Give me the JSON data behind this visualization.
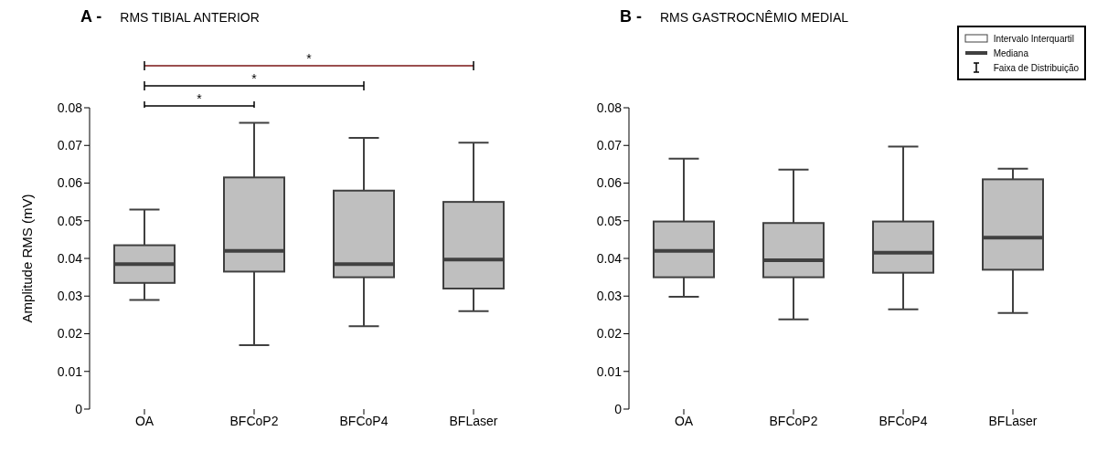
{
  "chart_data": [
    {
      "type": "box",
      "title": "A -",
      "subtitle": "RMS TIBIAL ANTERIOR",
      "ylabel": "Amplitude RMS (mV)",
      "categories": [
        "OA",
        "BFCoP2",
        "BFCoP4",
        "BFLaser"
      ],
      "ylim": [
        0,
        0.08
      ],
      "yticks": [
        0,
        0.01,
        0.02,
        0.03,
        0.04,
        0.05,
        0.06,
        0.07,
        0.08
      ],
      "annotations": [
        "*",
        "*",
        "*"
      ],
      "series": [
        {
          "color": "#bfbfbf",
          "boxes": [
            {
              "low": 0.029,
              "q1": 0.0335,
              "median": 0.0385,
              "q3": 0.0435,
              "high": 0.053
            },
            {
              "low": 0.017,
              "q1": 0.0365,
              "median": 0.042,
              "q3": 0.0615,
              "high": 0.076
            },
            {
              "low": 0.022,
              "q1": 0.035,
              "median": 0.0385,
              "q3": 0.058,
              "high": 0.072
            },
            {
              "low": 0.026,
              "q1": 0.032,
              "median": 0.0397,
              "q3": 0.055,
              "high": 0.0707
            }
          ]
        }
      ]
    },
    {
      "type": "box",
      "title": "B -",
      "subtitle": "RMS GASTROCNÊMIO MEDIAL",
      "categories": [
        "OA",
        "BFCoP2",
        "BFCoP4",
        "BFLaser"
      ],
      "ylim": [
        0,
        0.08
      ],
      "yticks": [
        0,
        0.01,
        0.02,
        0.03,
        0.04,
        0.05,
        0.06,
        0.07,
        0.08
      ],
      "annotations": [
        "Intervalo Interquartil",
        "Mediana",
        "Faixa de Distribuição"
      ],
      "series": [
        {
          "color": "#bfbfbf",
          "boxes": [
            {
              "low": 0.0298,
              "q1": 0.035,
              "median": 0.042,
              "q3": 0.0498,
              "high": 0.0665
            },
            {
              "low": 0.0238,
              "q1": 0.035,
              "median": 0.0395,
              "q3": 0.0494,
              "high": 0.0636
            },
            {
              "low": 0.0265,
              "q1": 0.0362,
              "median": 0.0415,
              "q3": 0.0498,
              "high": 0.0697
            },
            {
              "low": 0.0255,
              "q1": 0.037,
              "median": 0.0455,
              "q3": 0.061,
              "high": 0.0638
            }
          ]
        }
      ]
    }
  ]
}
